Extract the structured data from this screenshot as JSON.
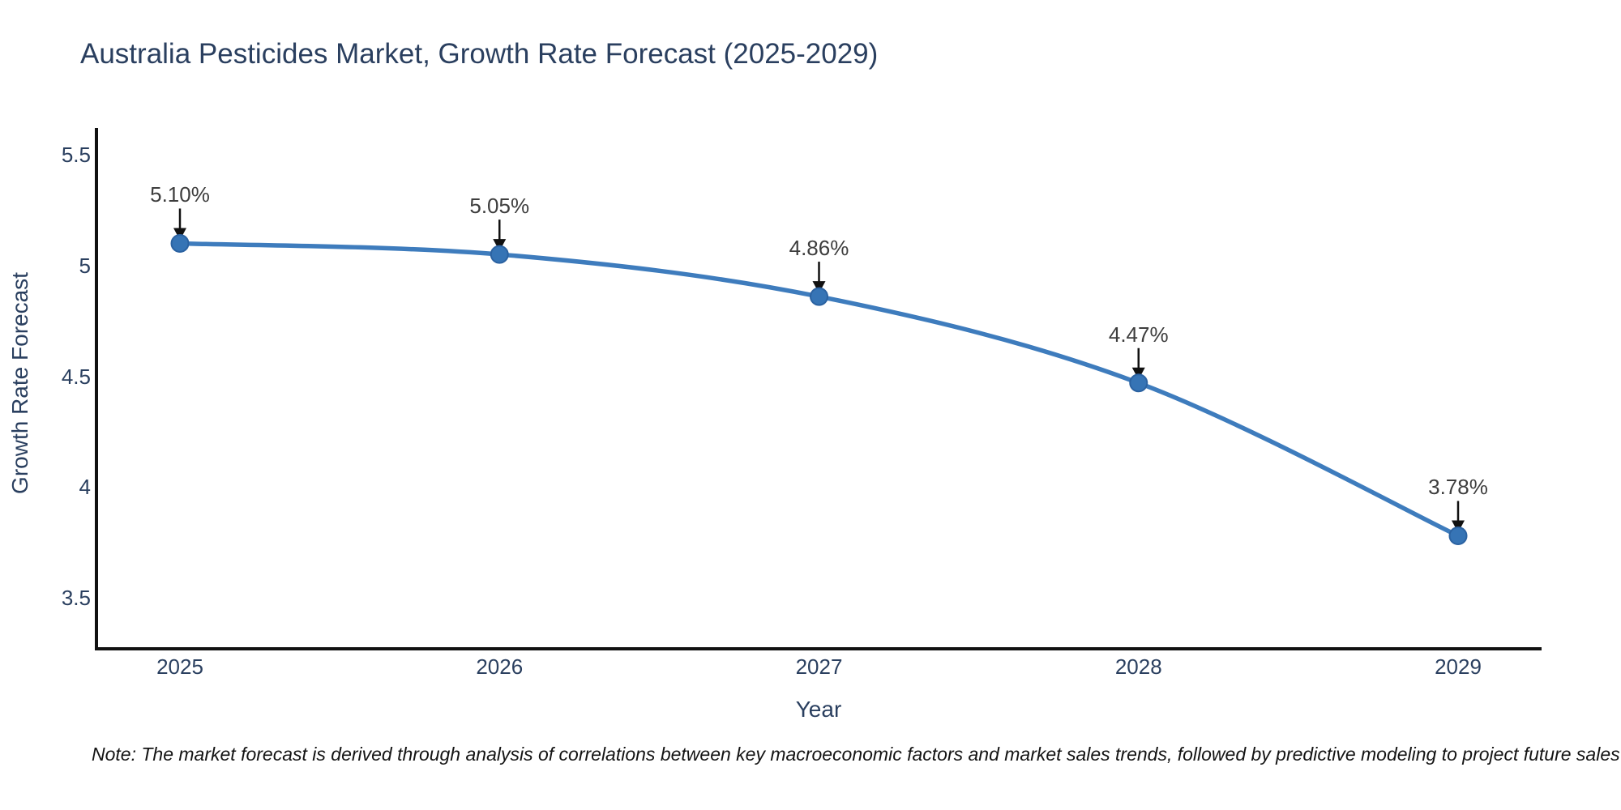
{
  "title": "Australia Pesticides Market, Growth Rate Forecast (2025-2029)",
  "note": "Note: The market forecast is derived through analysis of correlations between key macroeconomic factors and market sales trends, followed by predictive modeling to project future sales",
  "chart_data": {
    "type": "line",
    "line_shape": "spline",
    "title": "Australia Pesticides Market, Growth Rate Forecast (2025-2029)",
    "xlabel": "Year",
    "ylabel": "Growth Rate Forecast",
    "x": [
      2025,
      2026,
      2027,
      2028,
      2029
    ],
    "values": [
      5.1,
      5.05,
      4.86,
      4.47,
      3.78
    ],
    "point_labels": [
      "5.10%",
      "5.05%",
      "4.86%",
      "4.47%",
      "3.78%"
    ],
    "xticks": [
      "2025",
      "2026",
      "2027",
      "2028",
      "2029"
    ],
    "yticks": [
      "5.5",
      "5",
      "4.5",
      "4",
      "3.5"
    ],
    "ytick_values": [
      5.5,
      5.0,
      4.5,
      4.0,
      3.5
    ],
    "ylim": [
      3.27,
      5.62
    ],
    "grid": false,
    "legend": "none",
    "annotation_style": "label-with-down-arrow",
    "colors": {
      "line": "#3e7cbd",
      "marker_fill": "#3674b5",
      "marker_edge": "#2b62a1",
      "axis": "#111111",
      "chart_text": "#2a3f5f",
      "annotation_text": "#3d3d3d",
      "note_text": "#141414",
      "arrow": "#111111",
      "background": "#ffffff"
    }
  }
}
